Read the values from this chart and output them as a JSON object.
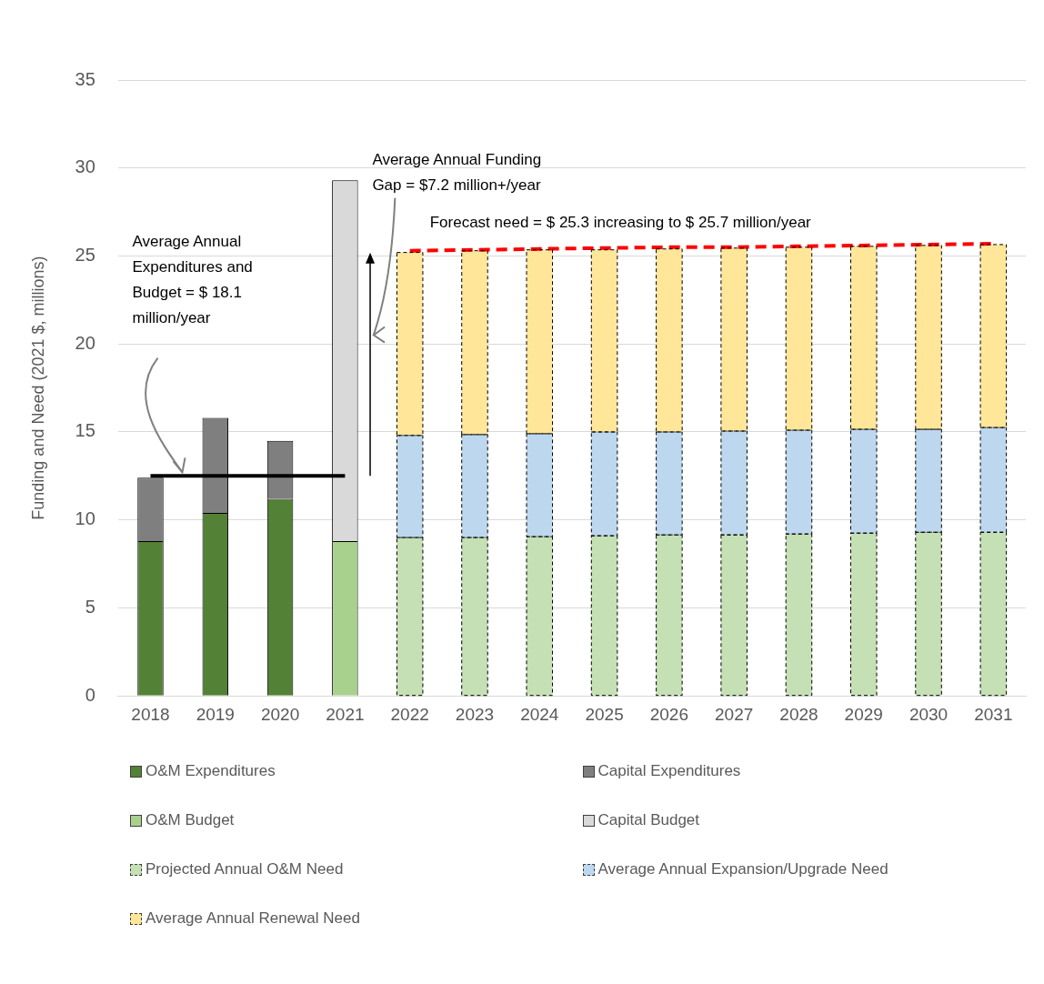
{
  "chart_data": {
    "type": "bar",
    "stacked": true,
    "ylabel": "Funding and Need (2021 $, millions)",
    "categories": [
      "2018",
      "2019",
      "2020",
      "2021",
      "2022",
      "2023",
      "2024",
      "2025",
      "2026",
      "2027",
      "2028",
      "2029",
      "2030",
      "2031"
    ],
    "series": [
      {
        "name": "O&M Expenditures",
        "color": "#538135",
        "values": [
          8.8,
          10.4,
          11.2,
          null,
          null,
          null,
          null,
          null,
          null,
          null,
          null,
          null,
          null,
          null
        ]
      },
      {
        "name": "Capital Expenditures",
        "color": "#7f7f7f",
        "values": [
          3.6,
          5.4,
          3.3,
          null,
          null,
          null,
          null,
          null,
          null,
          null,
          null,
          null,
          null,
          null
        ]
      },
      {
        "name": "O&M Budget",
        "color": "#a9d18e",
        "values": [
          null,
          null,
          null,
          8.8,
          null,
          null,
          null,
          null,
          null,
          null,
          null,
          null,
          null,
          null
        ]
      },
      {
        "name": "Capital Budget",
        "color": "#d9d9d9",
        "values": [
          null,
          null,
          null,
          20.5,
          null,
          null,
          null,
          null,
          null,
          null,
          null,
          null,
          null,
          null
        ]
      },
      {
        "name": "Projected Annual O&M Need",
        "color": "#c5e0b4",
        "line_style": "dashed",
        "values": [
          null,
          null,
          null,
          null,
          9.0,
          9.0,
          9.05,
          9.1,
          9.15,
          9.15,
          9.2,
          9.25,
          9.3,
          9.3
        ]
      },
      {
        "name": "Average Annual Expansion/Upgrade Need",
        "color": "#bdd7ee",
        "line_style": "dashed",
        "values": [
          null,
          null,
          null,
          null,
          5.8,
          5.85,
          5.85,
          5.9,
          5.85,
          5.9,
          5.9,
          5.9,
          5.85,
          5.95
        ]
      },
      {
        "name": "Average Annual Renewal Need",
        "color": "#ffe699",
        "line_style": "dashed",
        "values": [
          null,
          null,
          null,
          null,
          10.4,
          10.45,
          10.45,
          10.35,
          10.4,
          10.4,
          10.4,
          10.4,
          10.45,
          10.4
        ]
      },
      {
        "type": "line",
        "color": "#000000",
        "line_style": "solid",
        "values": [
          12.5,
          12.5,
          12.5,
          12.5,
          null,
          null,
          null,
          null,
          null,
          null,
          null,
          null,
          null,
          null
        ]
      },
      {
        "type": "line",
        "color": "#ff0000",
        "line_style": "dashed",
        "values": [
          null,
          null,
          null,
          null,
          25.3,
          25.35,
          25.4,
          25.45,
          25.5,
          25.5,
          25.55,
          25.6,
          25.65,
          25.7
        ]
      }
    ],
    "ylim": [
      0,
      35
    ],
    "yticks": [
      0,
      5,
      10,
      15,
      20,
      25,
      30,
      35
    ],
    "grid": "y",
    "legend": "bottom",
    "marker": "none",
    "annotations": [
      "Average Annual Expenditures and Budget = $ 18.1 million/year",
      "Average Annual Funding Gap = $7.2 million+/year",
      "Forecast need = $ 25.3 increasing to $ 25.7 million/year"
    ]
  }
}
